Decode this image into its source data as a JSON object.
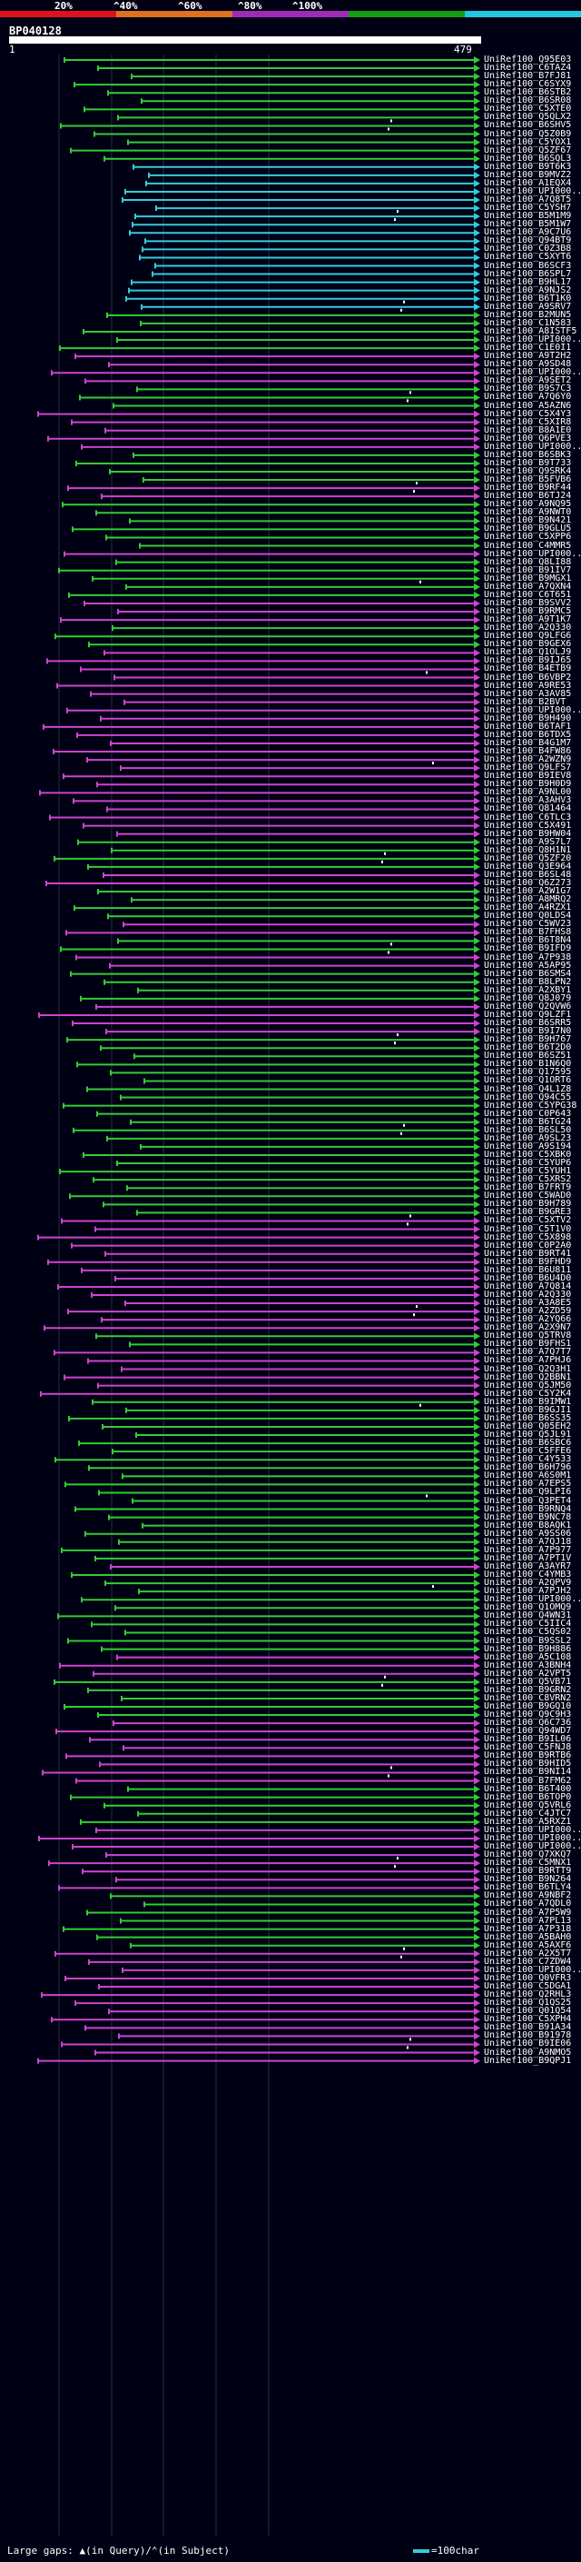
{
  "legend": {
    "labels": [
      "20%",
      "^40%",
      "^60%",
      "^80%",
      "^100%"
    ],
    "colors": [
      "#e01020",
      "#e07020",
      "#a02ab8",
      "#10a010",
      "#20c8e0"
    ]
  },
  "query": {
    "title": "BP040128",
    "start": "1",
    "end": "479"
  },
  "colors": {
    "cyan": "#33ccdd",
    "green": "#33cc33",
    "magenta": "#cc44cc"
  },
  "hits": [
    {
      "label": "UniRef100_Q95E03",
      "color": "green"
    },
    {
      "label": "UniRef100_C6TAZ4",
      "color": "green"
    },
    {
      "label": "UniRef100_B7FJ81",
      "color": "green"
    },
    {
      "label": "UniRef100_C6SYX9",
      "color": "green"
    },
    {
      "label": "UniRef100_B6STB2",
      "color": "green"
    },
    {
      "label": "UniRef100_B6SR08",
      "color": "green"
    },
    {
      "label": "UniRef100_C5XTE0",
      "color": "green"
    },
    {
      "label": "UniRef100_Q5QLX2",
      "color": "green"
    },
    {
      "label": "UniRef100_B6SHV5",
      "color": "green"
    },
    {
      "label": "UniRef100_Q5Z0B9",
      "color": "green"
    },
    {
      "label": "UniRef100_C5YOX1",
      "color": "green"
    },
    {
      "label": "UniRef100_Q5ZF67",
      "color": "green"
    },
    {
      "label": "UniRef100_B6SQL3",
      "color": "green"
    },
    {
      "label": "UniRef100_B9T6K3",
      "color": "cyan"
    },
    {
      "label": "UniRef100_B9MVZ2",
      "color": "cyan"
    },
    {
      "label": "UniRef100_A1EQX4",
      "color": "cyan"
    },
    {
      "label": "UniRef100_UPI000...",
      "color": "cyan"
    },
    {
      "label": "UniRef100_A7Q8T5",
      "color": "cyan"
    },
    {
      "label": "UniRef100_C5YSH7",
      "color": "cyan"
    },
    {
      "label": "UniRef100_B5M1M9",
      "color": "cyan"
    },
    {
      "label": "UniRef100_B5M1W7",
      "color": "cyan"
    },
    {
      "label": "UniRef100_A9C7U6",
      "color": "cyan"
    },
    {
      "label": "UniRef100_Q94BT9",
      "color": "cyan"
    },
    {
      "label": "UniRef100_C0Z3B8",
      "color": "cyan"
    },
    {
      "label": "UniRef100_C5XYT6",
      "color": "cyan"
    },
    {
      "label": "UniRef100_B6SCF3",
      "color": "cyan"
    },
    {
      "label": "UniRef100_B6SPL7",
      "color": "cyan"
    },
    {
      "label": "UniRef100_B9HL17",
      "color": "cyan"
    },
    {
      "label": "UniRef100_A9NJS2",
      "color": "cyan"
    },
    {
      "label": "UniRef100_B6T1K0",
      "color": "cyan"
    },
    {
      "label": "UniRef100_A9SRV7",
      "color": "cyan"
    },
    {
      "label": "UniRef100_B2MUN5",
      "color": "green"
    },
    {
      "label": "UniRef100_C1N583",
      "color": "green"
    },
    {
      "label": "UniRef100_A8ISTF5",
      "color": "green"
    },
    {
      "label": "UniRef100_UPI000...",
      "color": "green"
    },
    {
      "label": "UniRef100_C1E0I1",
      "color": "green"
    },
    {
      "label": "UniRef100_A9T2H2",
      "color": "magenta"
    },
    {
      "label": "UniRef100_A9SD48",
      "color": "magenta"
    },
    {
      "label": "UniRef100_UPI000...",
      "color": "magenta"
    },
    {
      "label": "UniRef100_A9SET2",
      "color": "magenta"
    },
    {
      "label": "UniRef100_B9S7C3",
      "color": "green"
    },
    {
      "label": "UniRef100_A7Q6Y0",
      "color": "green"
    },
    {
      "label": "UniRef100_A5AZN6",
      "color": "green"
    },
    {
      "label": "UniRef100_C5X4Y3",
      "color": "magenta"
    },
    {
      "label": "UniRef100_C5XIR8",
      "color": "magenta"
    },
    {
      "label": "UniRef100_B8A1E0",
      "color": "magenta"
    },
    {
      "label": "UniRef100_Q6PVE3",
      "color": "magenta"
    },
    {
      "label": "UniRef100_UPI000...",
      "color": "magenta"
    },
    {
      "label": "UniRef100_B6SBK3",
      "color": "green"
    },
    {
      "label": "UniRef100_B9T733",
      "color": "green"
    },
    {
      "label": "UniRef100_Q9SRK4",
      "color": "green"
    },
    {
      "label": "UniRef100_B5FVB6",
      "color": "green"
    },
    {
      "label": "UniRef100_B9RF44",
      "color": "magenta"
    },
    {
      "label": "UniRef100_B6TJ24",
      "color": "magenta"
    },
    {
      "label": "UniRef100_A9NQ95",
      "color": "green"
    },
    {
      "label": "UniRef100_A9NWT0",
      "color": "green"
    },
    {
      "label": "UniRef100_B9N421",
      "color": "green"
    },
    {
      "label": "UniRef100_B9GLU5",
      "color": "green"
    },
    {
      "label": "UniRef100_C5XPP6",
      "color": "green"
    },
    {
      "label": "UniRef100_C4MMR5",
      "color": "green"
    },
    {
      "label": "UniRef100_UPI000...",
      "color": "magenta"
    },
    {
      "label": "UniRef100_Q8LI88",
      "color": "green"
    },
    {
      "label": "UniRef100_B91IV7",
      "color": "green"
    },
    {
      "label": "UniRef100_B9MGX1",
      "color": "green"
    },
    {
      "label": "UniRef100_A7QXN4",
      "color": "green"
    },
    {
      "label": "UniRef100_C6T651",
      "color": "green"
    },
    {
      "label": "UniRef100_B9SVV2",
      "color": "magenta"
    },
    {
      "label": "UniRef100_B9RMC5",
      "color": "magenta"
    },
    {
      "label": "UniRef100_A9T1K7",
      "color": "magenta"
    },
    {
      "label": "UniRef100_A2Q330",
      "color": "green"
    },
    {
      "label": "UniRef100_Q9LFG6",
      "color": "green"
    },
    {
      "label": "UniRef100_B9GEX6",
      "color": "green"
    },
    {
      "label": "UniRef100_Q1OLJ9",
      "color": "magenta"
    },
    {
      "label": "UniRef100_B9IJ65",
      "color": "magenta"
    },
    {
      "label": "UniRef100_B4ETB9",
      "color": "magenta"
    },
    {
      "label": "UniRef100_B6VBP2",
      "color": "magenta"
    },
    {
      "label": "UniRef100_A9RE53",
      "color": "magenta"
    },
    {
      "label": "UniRef100_A3AV85",
      "color": "magenta"
    },
    {
      "label": "UniRef100_B2BVT",
      "color": "magenta"
    },
    {
      "label": "UniRef100_UPI000...",
      "color": "magenta"
    },
    {
      "label": "UniRef100_B9H490",
      "color": "magenta"
    },
    {
      "label": "UniRef100_B6TAF1",
      "color": "magenta"
    },
    {
      "label": "UniRef100_B6TDX5",
      "color": "magenta"
    },
    {
      "label": "UniRef100_B4G1M7",
      "color": "magenta"
    },
    {
      "label": "UniRef100_B4FW86",
      "color": "magenta"
    },
    {
      "label": "UniRef100_A2WZN9",
      "color": "magenta"
    },
    {
      "label": "UniRef100_Q9LFS7",
      "color": "magenta"
    },
    {
      "label": "UniRef100_B9IEV8",
      "color": "magenta"
    },
    {
      "label": "UniRef100_B9H0D9",
      "color": "magenta"
    },
    {
      "label": "UniRef100_A9NL00",
      "color": "magenta"
    },
    {
      "label": "UniRef100_A3AHV3",
      "color": "magenta"
    },
    {
      "label": "UniRef100_Q81464",
      "color": "magenta"
    },
    {
      "label": "UniRef100_C6TLC3",
      "color": "magenta"
    },
    {
      "label": "UniRef100_C5X491",
      "color": "magenta"
    },
    {
      "label": "UniRef100_B9HW04",
      "color": "magenta"
    },
    {
      "label": "UniRef100_A9S7L7",
      "color": "green"
    },
    {
      "label": "UniRef100_Q8H1N1",
      "color": "green"
    },
    {
      "label": "UniRef100_Q5ZF20",
      "color": "green"
    },
    {
      "label": "UniRef100_Q3E964",
      "color": "green"
    },
    {
      "label": "UniRef100_B6SL48",
      "color": "magenta"
    },
    {
      "label": "UniRef100_Q6Z273",
      "color": "magenta"
    },
    {
      "label": "UniRef100_A2W1G7",
      "color": "green"
    },
    {
      "label": "UniRef100_A8MRQ2",
      "color": "green"
    },
    {
      "label": "UniRef100_A4RZX1",
      "color": "green"
    },
    {
      "label": "UniRef100_Q0LDS4",
      "color": "green"
    },
    {
      "label": "UniRef100_C5WV23",
      "color": "magenta"
    },
    {
      "label": "UniRef100_B7FHS8",
      "color": "magenta"
    },
    {
      "label": "UniRef100_B6T8N4",
      "color": "green"
    },
    {
      "label": "UniRef100_B9IFD9",
      "color": "green"
    },
    {
      "label": "UniRef100_A7P938",
      "color": "magenta"
    },
    {
      "label": "UniRef100_A5AP95",
      "color": "magenta"
    },
    {
      "label": "UniRef100_B6SMS4",
      "color": "green"
    },
    {
      "label": "UniRef100_B8LPN2",
      "color": "green"
    },
    {
      "label": "UniRef100_A2XBY1",
      "color": "green"
    },
    {
      "label": "UniRef100_Q8J079",
      "color": "green"
    },
    {
      "label": "UniRef100_Q2QVW6",
      "color": "magenta"
    },
    {
      "label": "UniRef100_Q9LZF1",
      "color": "magenta"
    },
    {
      "label": "UniRef100_B6SRR5",
      "color": "magenta"
    },
    {
      "label": "UniRef100_B9I7N0",
      "color": "magenta"
    },
    {
      "label": "UniRef100_B9H767",
      "color": "green"
    },
    {
      "label": "UniRef100_B6T2D0",
      "color": "green"
    },
    {
      "label": "UniRef100_B6SZ51",
      "color": "green"
    },
    {
      "label": "UniRef100_B1N6Q0",
      "color": "green"
    },
    {
      "label": "UniRef100_Q17595",
      "color": "green"
    },
    {
      "label": "UniRef100_Q1ORT6",
      "color": "green"
    },
    {
      "label": "UniRef100_Q4L1Z8",
      "color": "green"
    },
    {
      "label": "UniRef100_Q94C55",
      "color": "green"
    },
    {
      "label": "UniRef100_C5YPG38",
      "color": "green"
    },
    {
      "label": "UniRef100_C0P643",
      "color": "green"
    },
    {
      "label": "UniRef100_B6TG24",
      "color": "green"
    },
    {
      "label": "UniRef100_B6SL50",
      "color": "green"
    },
    {
      "label": "UniRef100_A9SL23",
      "color": "green"
    },
    {
      "label": "UniRef100_A9S194",
      "color": "green"
    },
    {
      "label": "UniRef100_C5XBK0",
      "color": "green"
    },
    {
      "label": "UniRef100_C5YUP6",
      "color": "green"
    },
    {
      "label": "UniRef100_C5YUH1",
      "color": "green"
    },
    {
      "label": "UniRef100_C5XRS2",
      "color": "green"
    },
    {
      "label": "UniRef100_B7FRT9",
      "color": "green"
    },
    {
      "label": "UniRef100_C5WAD0",
      "color": "green"
    },
    {
      "label": "UniRef100_B9H789",
      "color": "green"
    },
    {
      "label": "UniRef100_B9GRE3",
      "color": "green"
    },
    {
      "label": "UniRef100_C5XTV2",
      "color": "magenta"
    },
    {
      "label": "UniRef100_C5T1V0",
      "color": "magenta"
    },
    {
      "label": "UniRef100_C5X898",
      "color": "magenta"
    },
    {
      "label": "UniRef100_C0P2A0",
      "color": "magenta"
    },
    {
      "label": "UniRef100_B9RT41",
      "color": "magenta"
    },
    {
      "label": "UniRef100_B9FHD9",
      "color": "magenta"
    },
    {
      "label": "UniRef100_B6U811",
      "color": "magenta"
    },
    {
      "label": "UniRef100_B6U4D0",
      "color": "magenta"
    },
    {
      "label": "UniRef100_A7Q814",
      "color": "magenta"
    },
    {
      "label": "UniRef100_A2Q330",
      "color": "magenta"
    },
    {
      "label": "UniRef100_A3A8E5",
      "color": "magenta"
    },
    {
      "label": "UniRef100_A2ZD59",
      "color": "magenta"
    },
    {
      "label": "UniRef100_A2YQ66",
      "color": "magenta"
    },
    {
      "label": "UniRef100_A2X9N7",
      "color": "magenta"
    },
    {
      "label": "UniRef100_Q5TRV8",
      "color": "green"
    },
    {
      "label": "UniRef100_B9FHS1",
      "color": "green"
    },
    {
      "label": "UniRef100_A7Q7T7",
      "color": "magenta"
    },
    {
      "label": "UniRef100_A7PHJ6",
      "color": "magenta"
    },
    {
      "label": "UniRef100_Q2Q3H1",
      "color": "magenta"
    },
    {
      "label": "UniRef100_Q2BBN1",
      "color": "magenta"
    },
    {
      "label": "UniRef100_Q5JM50",
      "color": "magenta"
    },
    {
      "label": "UniRef100_C5Y2K4",
      "color": "magenta"
    },
    {
      "label": "UniRef100_B9IMW1",
      "color": "green"
    },
    {
      "label": "UniRef100_B9GJI1",
      "green": "",
      "color": "green"
    },
    {
      "label": "UniRef100_B6SS35",
      "color": "green"
    },
    {
      "label": "UniRef100_Q05EH2",
      "color": "green"
    },
    {
      "label": "UniRef100_Q5JL91",
      "color": "green"
    },
    {
      "label": "UniRef100_B6SBC6",
      "color": "green"
    },
    {
      "label": "UniRef100_C5FFE6",
      "color": "green"
    },
    {
      "label": "UniRef100_C4Y533",
      "color": "green"
    },
    {
      "label": "UniRef100_B6H796",
      "color": "green"
    },
    {
      "label": "UniRef100_A6S0M1",
      "color": "green"
    },
    {
      "label": "UniRef100_A7EPS5",
      "color": "green"
    },
    {
      "label": "UniRef100_Q9LPI6",
      "color": "green"
    },
    {
      "label": "UniRef100_Q3PET4",
      "color": "green"
    },
    {
      "label": "UniRef100_B9RNQ4",
      "color": "green"
    },
    {
      "label": "UniRef100_B9NC78",
      "color": "green"
    },
    {
      "label": "UniRef100_B8AQK1",
      "color": "green"
    },
    {
      "label": "UniRef100_A9SS06",
      "color": "green"
    },
    {
      "label": "UniRef100_A7QJ18",
      "color": "green"
    },
    {
      "label": "UniRef100_A7P977",
      "color": "green"
    },
    {
      "label": "UniRef100_A7PT1V",
      "color": "green"
    },
    {
      "label": "UniRef100_A3AYR7",
      "color": "magenta"
    },
    {
      "label": "UniRef100_C4YMB3",
      "color": "green"
    },
    {
      "label": "UniRef100_A2QPV9",
      "color": "green"
    },
    {
      "label": "UniRef100_A7PJH2",
      "color": "green"
    },
    {
      "label": "UniRef100_UPI000...",
      "color": "green"
    },
    {
      "label": "UniRef100_Q1OMQ9",
      "color": "green"
    },
    {
      "label": "UniRef100_Q4WN31",
      "color": "green"
    },
    {
      "label": "UniRef100_C5IIC4",
      "color": "green"
    },
    {
      "label": "UniRef100_C5QS02",
      "color": "green"
    },
    {
      "label": "UniRef100_B9SSL2",
      "color": "green"
    },
    {
      "label": "UniRef100_B9H886",
      "color": "green"
    },
    {
      "label": "UniRef100_A5C108",
      "color": "magenta"
    },
    {
      "label": "UniRef100_A3BNH4",
      "color": "magenta"
    },
    {
      "label": "UniRef100_A2VPT5",
      "color": "magenta"
    },
    {
      "label": "UniRef100_Q5VB71",
      "color": "green"
    },
    {
      "label": "UniRef100_B9GRN2",
      "color": "green"
    },
    {
      "label": "UniRef100_C8VRN2",
      "color": "green"
    },
    {
      "label": "UniRef100_B9GQ10",
      "color": "green"
    },
    {
      "label": "UniRef100_Q9C9H3",
      "color": "green"
    },
    {
      "label": "UniRef100_Q6C736",
      "color": "magenta"
    },
    {
      "label": "UniRef100_Q94WD7",
      "color": "magenta"
    },
    {
      "label": "UniRef100_B9IL06",
      "color": "magenta"
    },
    {
      "label": "UniRef100_C5FNJ8",
      "color": "magenta"
    },
    {
      "label": "UniRef100_B9RTB6",
      "color": "magenta"
    },
    {
      "label": "UniRef100_B9HID5",
      "color": "magenta"
    },
    {
      "label": "UniRef100_B9NI14",
      "color": "magenta"
    },
    {
      "label": "UniRef100_B7FM62",
      "color": "magenta"
    },
    {
      "label": "UniRef100_B6T400",
      "color": "green"
    },
    {
      "label": "UniRef100_B6TOP0",
      "color": "green"
    },
    {
      "label": "UniRef100_Q5VRL6",
      "color": "green"
    },
    {
      "label": "UniRef100_C4JTC7",
      "color": "green"
    },
    {
      "label": "UniRef100_A5RXZ1",
      "color": "green"
    },
    {
      "label": "UniRef100_UPI000...",
      "color": "magenta"
    },
    {
      "label": "UniRef100_UPI000...",
      "color": "magenta"
    },
    {
      "label": "UniRef100_UPI000...",
      "color": "magenta"
    },
    {
      "label": "UniRef100_Q7XKQ7",
      "color": "magenta"
    },
    {
      "label": "UniRef100_C5MNX1",
      "color": "magenta"
    },
    {
      "label": "UniRef100_B9RTT9",
      "color": "magenta"
    },
    {
      "label": "UniRef100_B9N264",
      "color": "magenta"
    },
    {
      "label": "UniRef100_B6TLY4",
      "color": "magenta"
    },
    {
      "label": "UniRef100_A9NBF2",
      "color": "green"
    },
    {
      "label": "UniRef100_A7QDL0",
      "color": "green"
    },
    {
      "label": "UniRef100_A7P5W9",
      "color": "green"
    },
    {
      "label": "UniRef100_A7PL13",
      "color": "green"
    },
    {
      "label": "UniRef100_A7P318",
      "color": "green"
    },
    {
      "label": "UniRef100_A5BAH0",
      "color": "green"
    },
    {
      "label": "UniRef100_A5AXF6",
      "color": "green"
    },
    {
      "label": "UniRef100_A2X5T7",
      "color": "magenta"
    },
    {
      "label": "UniRef100_C7ZDW4",
      "color": "magenta"
    },
    {
      "label": "UniRef100_UPI000...",
      "color": "magenta"
    },
    {
      "label": "UniRef100_Q0VFR3",
      "color": "magenta"
    },
    {
      "label": "UniRef100_C5DGA1",
      "color": "magenta"
    },
    {
      "label": "UniRef100_Q2RHL3",
      "color": "magenta"
    },
    {
      "label": "UniRef100_Q1QS25",
      "color": "magenta"
    },
    {
      "label": "UniRef100_Q01Q54",
      "color": "magenta"
    },
    {
      "label": "UniRef100_C5XPH4",
      "color": "magenta"
    },
    {
      "label": "UniRef100_B91A34",
      "color": "magenta"
    },
    {
      "label": "UniRef100_B91978",
      "color": "magenta"
    },
    {
      "label": "UniRef100_B9IE06",
      "color": "magenta"
    },
    {
      "label": "UniRef100_A9NMO5",
      "color": "magenta"
    },
    {
      "label": "UniRef100_B9QPJ1",
      "color": "magenta"
    }
  ],
  "footer": {
    "text": "Large gaps: ▲(in Query)/⌃(in Subject)",
    "scale": "=100char"
  }
}
